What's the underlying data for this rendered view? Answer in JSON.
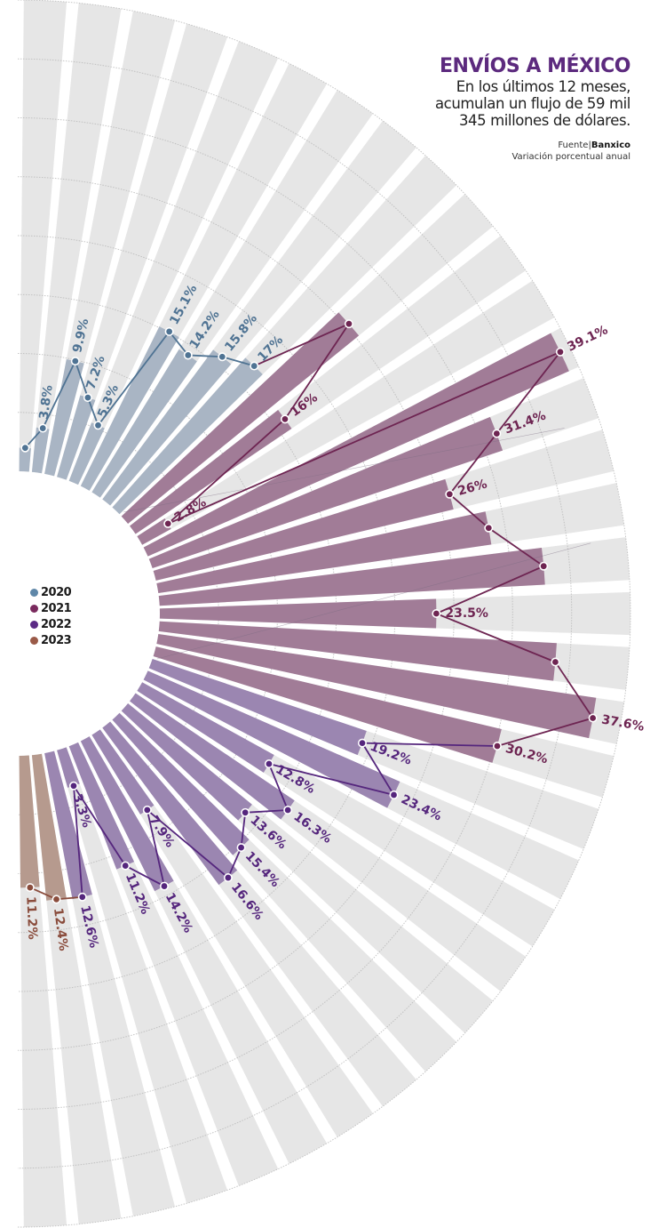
{
  "header": {
    "title": "ENVÍOS A MÉXICO",
    "subtitle": "En los últimos 12 meses, acumulan un flujo de 59 mil 345 millones de dólares.",
    "source_label": "Fuente|",
    "source_name": "Banxico",
    "note": "Variación porcentual anual"
  },
  "legend": [
    {
      "label": "2020",
      "color": "#5f87a8"
    },
    {
      "label": "2021",
      "color": "#7a2a5e"
    },
    {
      "label": "2022",
      "color": "#5b2a85"
    },
    {
      "label": "2023",
      "color": "#9a5a48"
    }
  ],
  "chart_data": {
    "type": "radial-bar-line",
    "title": "ENVÍOS A MÉXICO",
    "subtitle": "Variación porcentual anual",
    "value_unit": "%",
    "range": [
      0,
      40
    ],
    "grid_step": 5,
    "grid": true,
    "legend_position": "left",
    "series": [
      {
        "name": "2020",
        "bar_color": "#a9b5c4",
        "line_color": "#4f7393",
        "values": [
          2.0,
          3.8,
          9.9,
          7.2,
          5.3,
          15.1,
          14.2,
          15.8,
          17.0
        ],
        "labels": [
          "",
          "3.8%",
          "9.9%",
          "7.2%",
          "5.3%",
          "15.1%",
          "14.2%",
          "15.8%",
          "17%"
        ]
      },
      {
        "name": "2021",
        "bar_color": "#a17c97",
        "line_color": "#6e2552",
        "values": [
          25.3,
          16.0,
          2.8,
          39.1,
          31.4,
          26.0,
          28.6,
          32.8,
          23.5,
          33.8,
          37.6,
          30.2
        ],
        "labels": [
          "",
          "16%",
          "2.8%",
          "39.1%",
          "31.4%",
          "26%",
          "",
          "",
          "23.5%",
          "",
          "37.6%",
          "30.2%"
        ]
      },
      {
        "name": "2022",
        "bar_color": "#9b86b1",
        "line_color": "#55267d",
        "values": [
          19.2,
          23.4,
          12.8,
          16.3,
          13.6,
          15.4,
          16.6,
          7.9,
          14.2,
          11.2,
          3.3,
          12.6
        ],
        "labels": [
          "19.2%",
          "23.4%",
          "12.8%",
          "16.3%",
          "13.6%",
          "15.4%",
          "16.6%",
          "7.9%",
          "14.2%",
          "11.2%",
          "3.3%",
          "12.6%"
        ]
      },
      {
        "name": "2023",
        "bar_color": "#b69a8e",
        "line_color": "#8a4c3c",
        "values": [
          12.4,
          11.2
        ],
        "labels": [
          "12.4%",
          "11.2%"
        ]
      }
    ]
  }
}
